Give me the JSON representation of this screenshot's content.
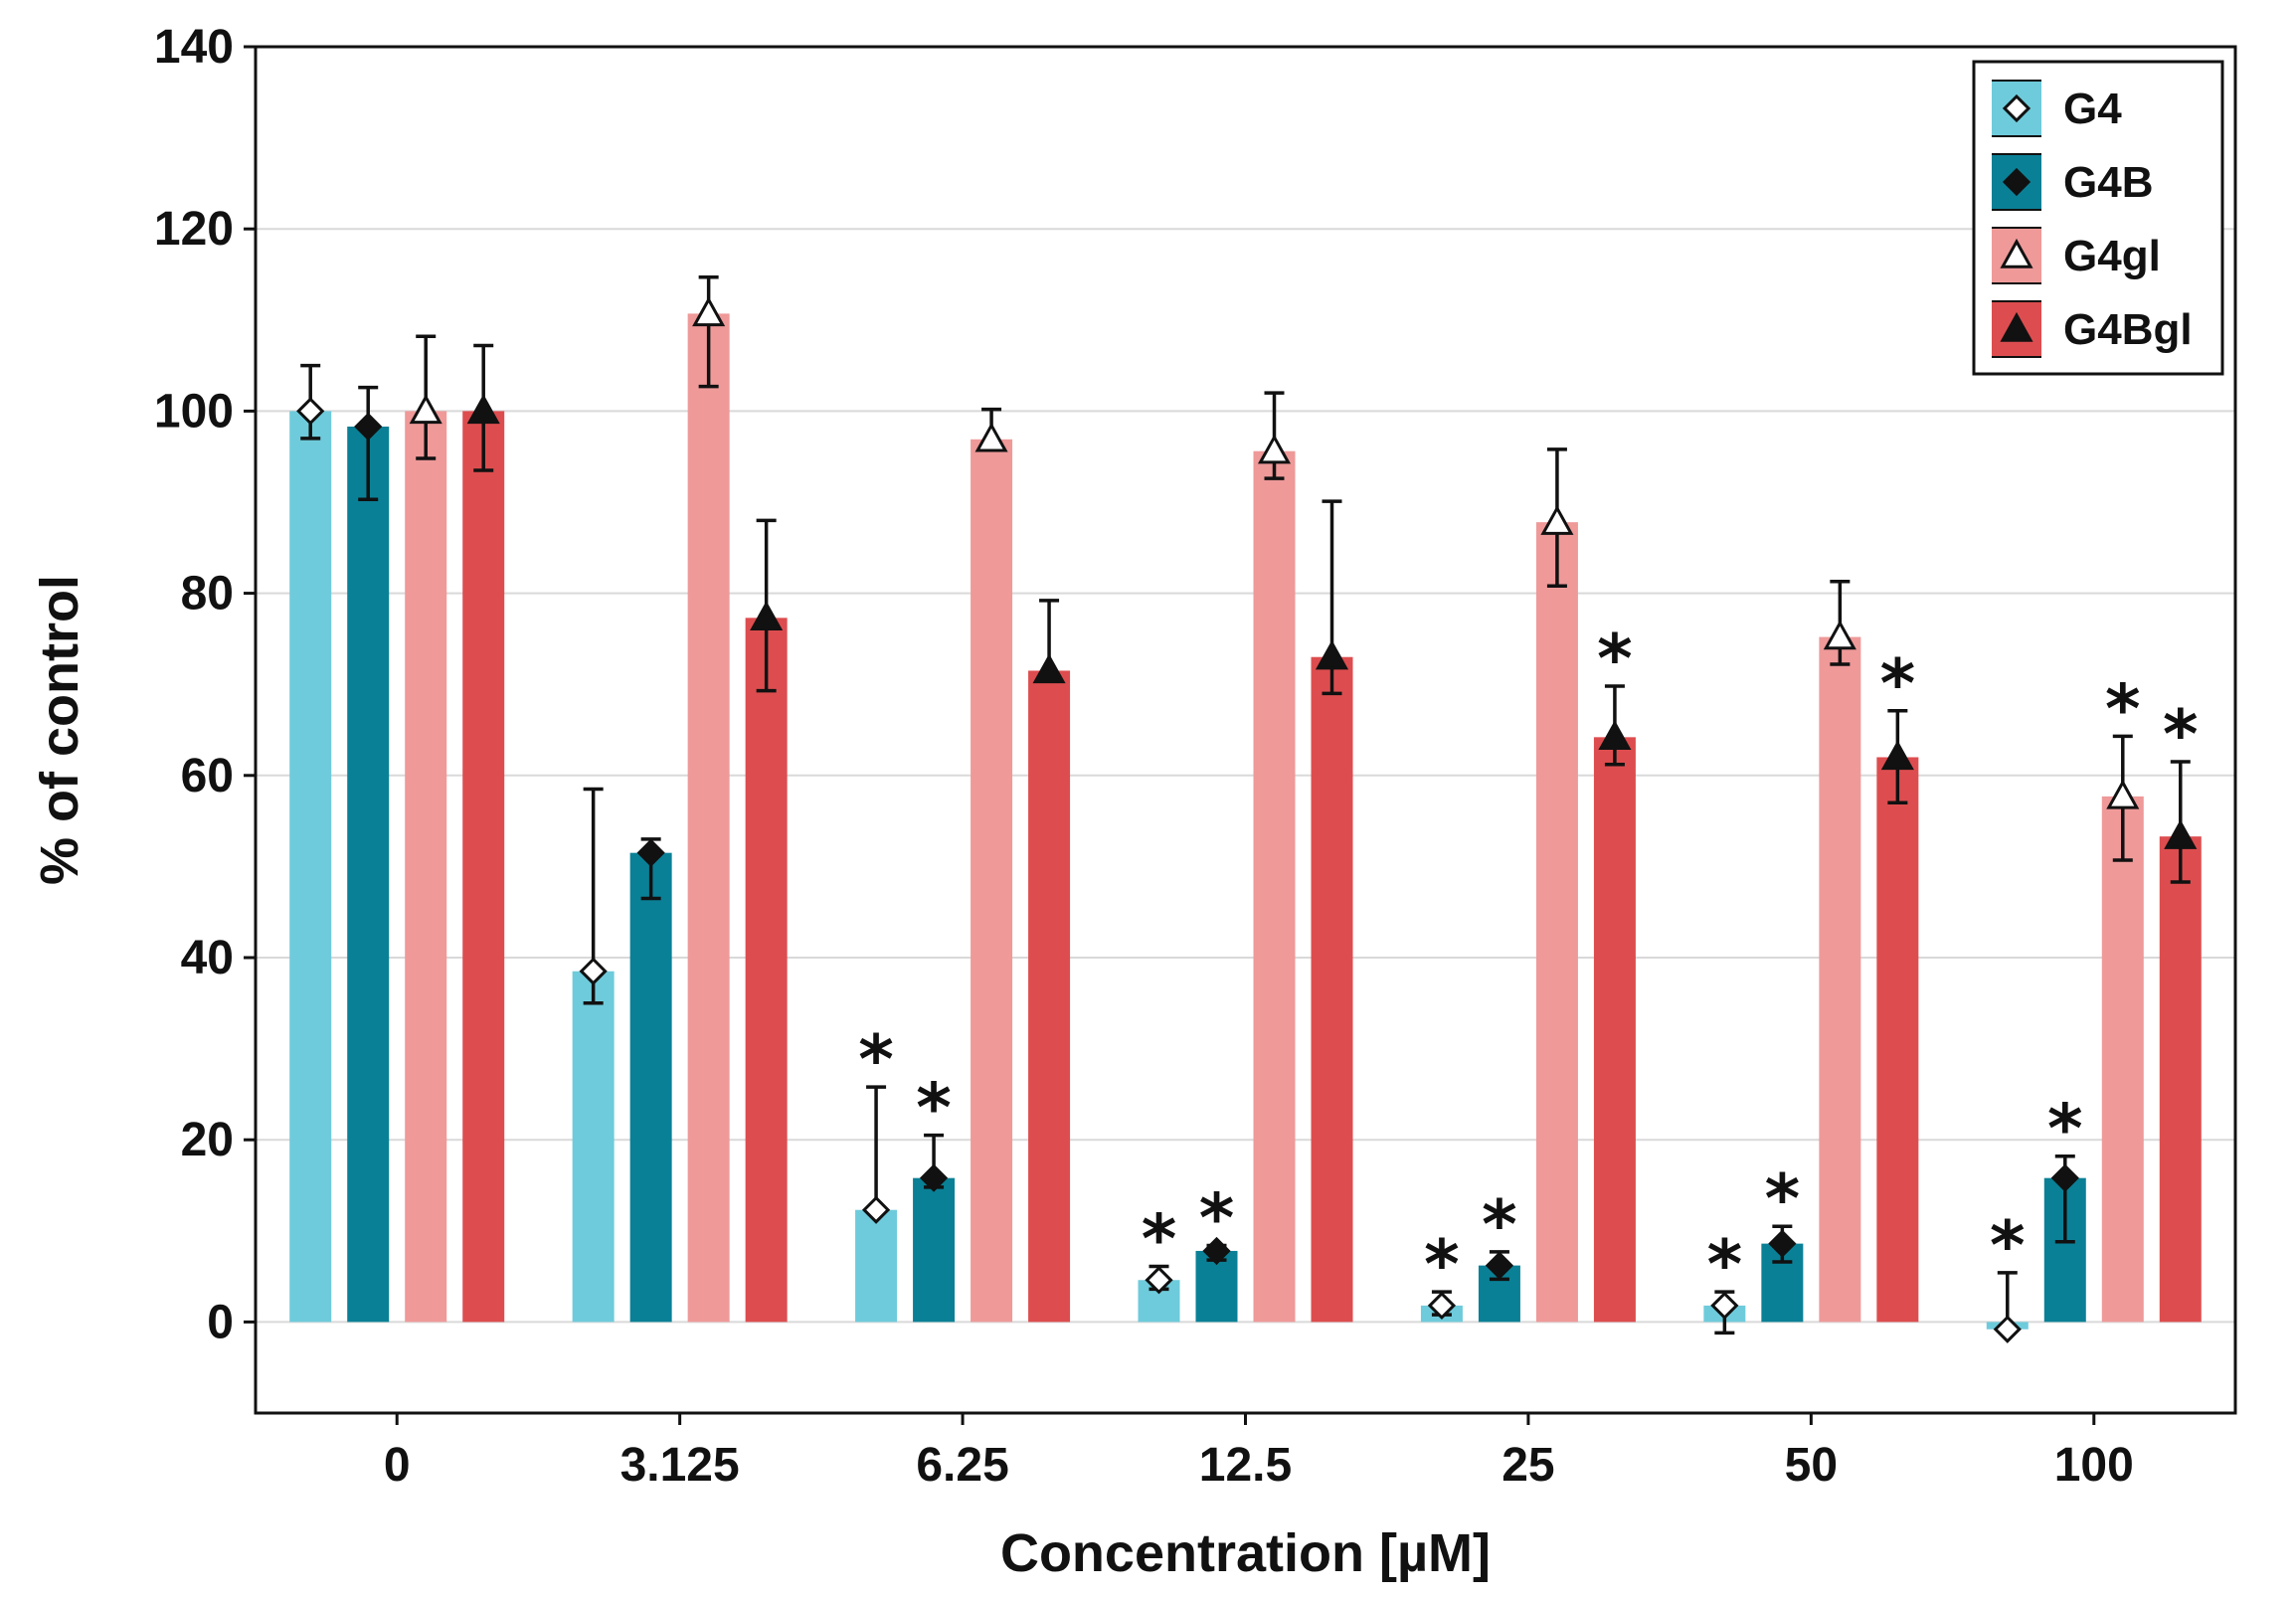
{
  "chart_data": {
    "type": "bar",
    "title": "",
    "xlabel": "Concentration [µM]",
    "ylabel": "% of control",
    "ylim": [
      -10,
      140
    ],
    "yticks": [
      0,
      20,
      40,
      60,
      80,
      100,
      120,
      140
    ],
    "grid": true,
    "legend_position": "top-right",
    "categories": [
      "0",
      "3.125",
      "6.25",
      "12.5",
      "25",
      "50",
      "100"
    ],
    "significance_marker": "*",
    "series": [
      {
        "name": "G4",
        "color": "#6ecbdb",
        "marker": "open-diamond",
        "values": [
          100,
          38.5,
          12.3,
          4.6,
          1.8,
          1.8,
          -0.8
        ],
        "err_low": [
          3,
          3.5,
          0,
          1,
          1,
          3,
          0
        ],
        "err_high": [
          5,
          20,
          13.5,
          1.5,
          1.5,
          1.5,
          6.2
        ],
        "significant": [
          false,
          false,
          true,
          true,
          true,
          true,
          true
        ]
      },
      {
        "name": "G4B",
        "color": "#0a8096",
        "marker": "filled-diamond",
        "values": [
          98.3,
          51.5,
          15.8,
          7.8,
          6.2,
          8.6,
          15.8
        ],
        "err_low": [
          8,
          5,
          1,
          1,
          1.5,
          2,
          7
        ],
        "err_high": [
          4.3,
          1.5,
          4.7,
          0.6,
          1.5,
          1.9,
          2.4
        ],
        "significant": [
          false,
          false,
          true,
          true,
          true,
          true,
          true
        ]
      },
      {
        "name": "G4gl",
        "color": "#ef9999",
        "marker": "open-triangle",
        "values": [
          100,
          110.7,
          96.9,
          95.6,
          87.8,
          75.2,
          57.7
        ],
        "err_low": [
          5.2,
          8,
          1,
          3,
          7,
          3,
          7
        ],
        "err_high": [
          8.2,
          4,
          3.3,
          6.4,
          8,
          6.1,
          6.6
        ],
        "significant": [
          false,
          false,
          false,
          false,
          false,
          false,
          true
        ]
      },
      {
        "name": "G4Bgl",
        "color": "#dd4d4f",
        "marker": "filled-triangle",
        "values": [
          100,
          77.3,
          71.5,
          73,
          64.2,
          62,
          53.3
        ],
        "err_low": [
          6.5,
          8,
          0,
          4,
          3,
          5,
          5
        ],
        "err_high": [
          7.2,
          10.7,
          7.7,
          17.1,
          5.6,
          5.1,
          8.2
        ],
        "significant": [
          false,
          false,
          false,
          false,
          true,
          true,
          true
        ]
      }
    ]
  }
}
